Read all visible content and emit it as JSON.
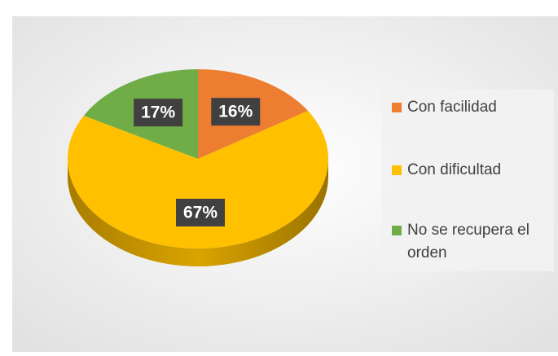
{
  "chart_data": {
    "type": "pie",
    "categories": [
      "Con facilidad",
      "Con dificultad",
      "No se recupera el orden"
    ],
    "values": [
      16,
      67,
      17
    ],
    "value_labels": [
      "16%",
      "67%",
      "17%"
    ],
    "colors": [
      "#ed7d31",
      "#ffc000",
      "#70ad47"
    ],
    "legend": "right"
  }
}
